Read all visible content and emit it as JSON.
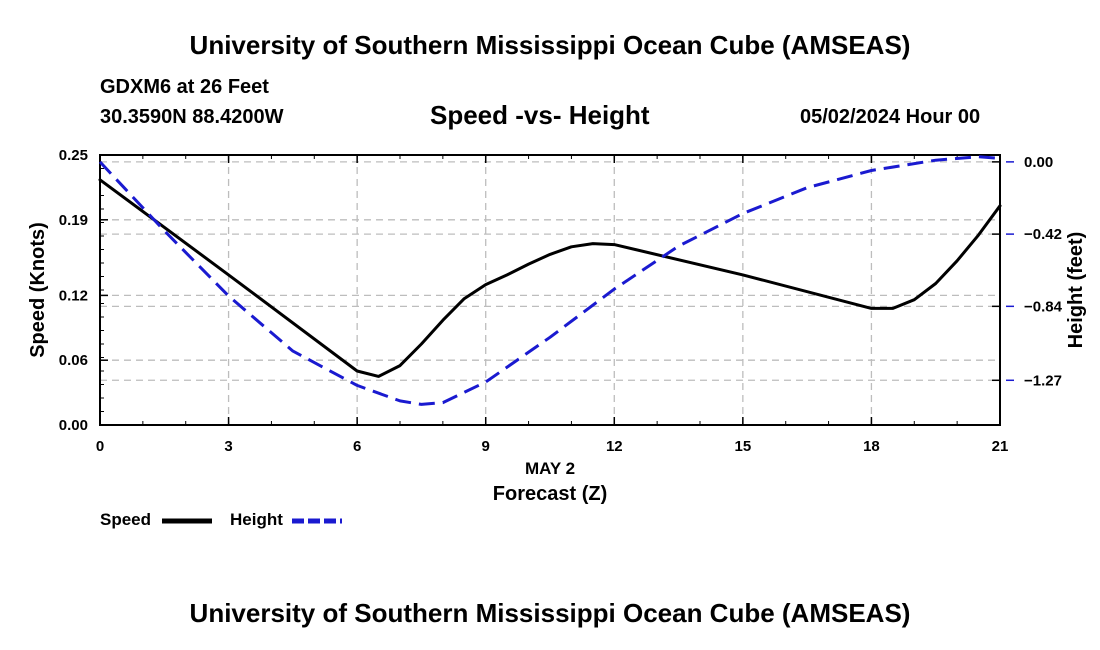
{
  "header": {
    "title": "University of Southern Mississippi Ocean Cube (AMSEAS)",
    "station": "GDXM6 at 26 Feet",
    "coords": "30.3590N  88.4200W",
    "chart_title": "Speed -vs- Height",
    "datetime": "05/02/2024 Hour 00"
  },
  "footer": {
    "title": "University of Southern Mississippi Ocean Cube (AMSEAS)"
  },
  "chart_data": {
    "type": "line",
    "title": "Speed -vs- Height",
    "xlabel": "Forecast (Z)",
    "xlabel_date": "MAY 2",
    "ylabel_left": "Speed (Knots)",
    "ylabel_right": "Height (feet)",
    "xlim": [
      0,
      21
    ],
    "ylim_left": [
      0,
      0.25
    ],
    "ylim_right": [
      -1.53,
      0.04
    ],
    "x_ticks": [
      0,
      3,
      6,
      9,
      12,
      15,
      18,
      21
    ],
    "x_tick_labels": [
      "0",
      "3",
      "6",
      "9",
      "12",
      "15",
      "18",
      "21"
    ],
    "y_left_ticks": [
      0.0,
      0.06,
      0.12,
      0.19,
      0.25
    ],
    "y_left_tick_labels": [
      "0.00",
      "0.06",
      "0.12",
      "0.19",
      "0.25"
    ],
    "y_right_ticks": [
      0.0,
      -0.42,
      -0.84,
      -1.27
    ],
    "y_right_tick_labels": [
      "0.00",
      "−0.42",
      "−0.84",
      "−1.27"
    ],
    "grid": true,
    "series": [
      {
        "name": "Speed",
        "axis": "left",
        "color": "#000000",
        "style": "solid",
        "x": [
          0,
          3,
          6,
          6.5,
          7,
          7.5,
          8,
          8.5,
          9,
          9.5,
          10,
          10.5,
          11,
          11.5,
          12,
          15,
          18,
          18.5,
          19,
          19.5,
          20,
          20.5,
          21
        ],
        "values": [
          0.227,
          0.139,
          0.05,
          0.045,
          0.055,
          0.075,
          0.097,
          0.117,
          0.13,
          0.139,
          0.149,
          0.158,
          0.165,
          0.168,
          0.167,
          0.139,
          0.108,
          0.108,
          0.116,
          0.131,
          0.152,
          0.176,
          0.203
        ]
      },
      {
        "name": "Height",
        "axis": "right",
        "color": "#1a1ad0",
        "style": "dashed",
        "x": [
          0,
          1.5,
          3,
          4.5,
          6,
          7,
          7.5,
          8,
          9,
          10.5,
          12,
          13.5,
          15,
          16.5,
          18,
          19.5,
          20.5,
          21
        ],
        "values": [
          0.0,
          -0.4,
          -0.78,
          -1.1,
          -1.3,
          -1.39,
          -1.41,
          -1.4,
          -1.28,
          -1.02,
          -0.74,
          -0.49,
          -0.3,
          -0.15,
          -0.05,
          0.01,
          0.03,
          0.02
        ]
      }
    ]
  }
}
